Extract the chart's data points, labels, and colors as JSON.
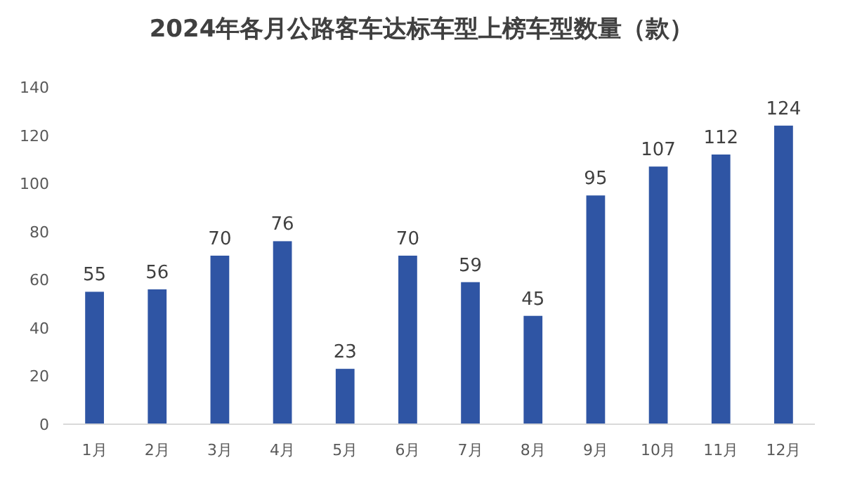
{
  "chart_data": {
    "type": "bar",
    "title": "2024年各月公路客车达标车型上榜车型数量（款）",
    "categories": [
      "1月",
      "2月",
      "3月",
      "4月",
      "5月",
      "6月",
      "7月",
      "8月",
      "9月",
      "10月",
      "11月",
      "12月"
    ],
    "values": [
      55,
      56,
      70,
      76,
      23,
      70,
      59,
      45,
      95,
      107,
      112,
      124
    ],
    "color": "#2f55a4",
    "ylim": [
      0,
      140
    ],
    "yticks": [
      0,
      20,
      40,
      60,
      80,
      100,
      120,
      140
    ],
    "data_labels": true
  }
}
